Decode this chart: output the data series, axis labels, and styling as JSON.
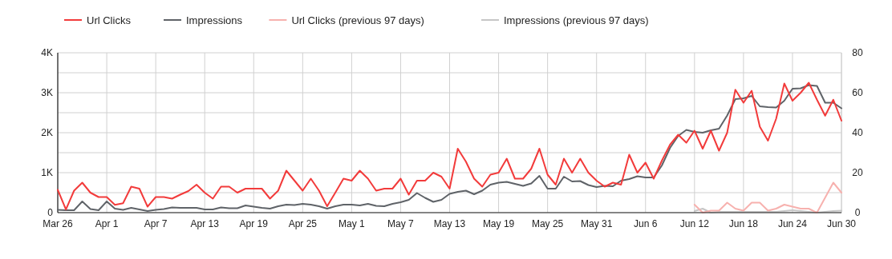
{
  "chart_data": {
    "type": "line",
    "legend": "top left",
    "grid": true,
    "line_style": "solid",
    "marker": "none",
    "x": [
      "--03-26",
      "--03-27",
      "--03-28",
      "--03-29",
      "--03-30",
      "--03-31",
      "--04-01",
      "--04-02",
      "--04-03",
      "--04-04",
      "--04-05",
      "--04-06",
      "--04-07",
      "--04-08",
      "--04-09",
      "--04-10",
      "--04-11",
      "--04-12",
      "--04-13",
      "--04-14",
      "--04-15",
      "--04-16",
      "--04-17",
      "--04-18",
      "--04-19",
      "--04-20",
      "--04-21",
      "--04-22",
      "--04-23",
      "--04-24",
      "--04-25",
      "--04-26",
      "--04-27",
      "--04-28",
      "--04-29",
      "--04-30",
      "--05-01",
      "--05-02",
      "--05-03",
      "--05-04",
      "--05-05",
      "--05-06",
      "--05-07",
      "--05-08",
      "--05-09",
      "--05-10",
      "--05-11",
      "--05-12",
      "--05-13",
      "--05-14",
      "--05-15",
      "--05-16",
      "--05-17",
      "--05-18",
      "--05-19",
      "--05-20",
      "--05-21",
      "--05-22",
      "--05-23",
      "--05-24",
      "--05-25",
      "--05-26",
      "--05-27",
      "--05-28",
      "--05-29",
      "--05-30",
      "--05-31",
      "--06-01",
      "--06-02",
      "--06-03",
      "--06-04",
      "--06-05",
      "--06-06",
      "--06-07",
      "--06-08",
      "--06-09",
      "--06-10",
      "--06-11",
      "--06-12",
      "--06-13",
      "--06-14",
      "--06-15",
      "--06-16",
      "--06-17",
      "--06-18",
      "--06-19",
      "--06-20",
      "--06-21",
      "--06-22",
      "--06-23",
      "--06-24",
      "--06-25",
      "--06-26",
      "--06-27",
      "--06-28",
      "--06-29",
      "--06-30"
    ],
    "xlim": [
      "--03-26",
      "--06-30"
    ],
    "xticks": [
      {
        "value": "--03-26",
        "label": "Mar 26"
      },
      {
        "value": "--04-01",
        "label": "Apr 1"
      },
      {
        "value": "--04-07",
        "label": "Apr 7"
      },
      {
        "value": "--04-13",
        "label": "Apr 13"
      },
      {
        "value": "--04-19",
        "label": "Apr 19"
      },
      {
        "value": "--04-25",
        "label": "Apr 25"
      },
      {
        "value": "--05-01",
        "label": "May 1"
      },
      {
        "value": "--05-07",
        "label": "May 7"
      },
      {
        "value": "--05-13",
        "label": "May 13"
      },
      {
        "value": "--05-19",
        "label": "May 19"
      },
      {
        "value": "--05-25",
        "label": "May 25"
      },
      {
        "value": "--05-31",
        "label": "May 31"
      },
      {
        "value": "--06-06",
        "label": "Jun 6"
      },
      {
        "value": "--06-12",
        "label": "Jun 12"
      },
      {
        "value": "--06-18",
        "label": "Jun 18"
      },
      {
        "value": "--06-24",
        "label": "Jun 24"
      },
      {
        "value": "--06-30",
        "label": "Jun 30"
      }
    ],
    "ylim": [
      0,
      4000
    ],
    "yticks": [
      0,
      {
        "value": 500,
        "label": null
      },
      {
        "value": 1000,
        "label": "1K"
      },
      {
        "value": 1500,
        "label": null
      },
      {
        "value": 2000,
        "label": "2K"
      },
      {
        "value": 2500,
        "label": null
      },
      {
        "value": 3000,
        "label": "3K"
      },
      {
        "value": 3500,
        "label": null
      },
      {
        "value": 4000,
        "label": "4K"
      }
    ],
    "y2lim": [
      0,
      80
    ],
    "y2ticks": [
      0,
      20,
      40,
      60,
      80
    ],
    "series": [
      {
        "name": "Url Clicks",
        "color": "#f23b3b",
        "axis": "y2",
        "values": [
          11.4,
          1.6,
          11,
          15,
          10,
          7.8,
          7.8,
          3.9,
          4.7,
          13,
          12,
          3,
          7.8,
          7.8,
          7,
          9,
          10.8,
          14,
          10,
          7,
          13,
          13,
          10,
          12,
          12,
          12,
          7,
          11,
          21,
          16,
          11,
          17,
          11,
          3.2,
          10,
          17,
          16,
          21,
          17,
          11,
          12,
          12,
          17,
          9,
          16,
          16,
          20,
          18,
          12,
          32,
          25.5,
          17,
          13,
          19,
          20,
          27,
          17,
          17,
          22,
          32,
          19,
          14,
          27,
          20,
          27,
          20,
          16,
          13,
          15,
          14,
          29,
          20,
          25,
          17,
          26,
          34,
          39,
          35,
          41,
          32,
          41,
          31,
          40,
          61.5,
          55,
          61,
          43,
          36,
          47,
          64.6,
          56,
          60,
          65,
          56.5,
          48.5,
          56.5,
          46
        ]
      },
      {
        "name": "Impressions",
        "color": "#5f6368",
        "axis": "y",
        "values": [
          70,
          60,
          60,
          280,
          90,
          60,
          280,
          100,
          70,
          120,
          80,
          40,
          70,
          90,
          130,
          120,
          120,
          120,
          80,
          80,
          130,
          110,
          110,
          180,
          150,
          120,
          100,
          160,
          200,
          190,
          220,
          200,
          160,
          100,
          160,
          200,
          200,
          180,
          220,
          170,
          160,
          220,
          260,
          320,
          490,
          370,
          270,
          320,
          470,
          520,
          550,
          460,
          550,
          700,
          750,
          770,
          720,
          670,
          730,
          920,
          600,
          600,
          900,
          780,
          790,
          690,
          640,
          670,
          660,
          800,
          840,
          910,
          880,
          880,
          1180,
          1620,
          1920,
          2070,
          2020,
          2000,
          2060,
          2100,
          2430,
          2840,
          2860,
          2920,
          2660,
          2640,
          2630,
          2800,
          3100,
          3110,
          3190,
          3170,
          2750,
          2750,
          2610
        ]
      },
      {
        "name": "Url Clicks (previous 97 days)",
        "color": "#f7b1ae",
        "axis": "y2",
        "x": [
          "--06-12",
          "--06-13",
          "--06-14",
          "--06-15",
          "--06-16",
          "--06-17",
          "--06-18",
          "--06-19",
          "--06-20",
          "--06-21",
          "--06-22",
          "--06-23",
          "--06-24",
          "--06-25",
          "--06-26",
          "--06-27",
          "--06-28",
          "--06-29",
          "--06-30"
        ],
        "values": [
          4,
          0,
          1,
          1,
          5,
          2,
          1,
          5,
          5,
          1,
          2,
          4,
          3,
          2,
          2,
          0,
          7.5,
          15,
          10
        ]
      },
      {
        "name": "Impressions (previous 97 days)",
        "color": "#c6c6c6",
        "axis": "y",
        "x": [
          "--06-12",
          "--06-13",
          "--06-14",
          "--06-15",
          "--06-16",
          "--06-17",
          "--06-18",
          "--06-19",
          "--06-20",
          "--06-21",
          "--06-22",
          "--06-23",
          "--06-24",
          "--06-25",
          "--06-26",
          "--06-27",
          "--06-28",
          "--06-29",
          "--06-30"
        ],
        "values": [
          40,
          100,
          0,
          20,
          20,
          20,
          20,
          20,
          20,
          20,
          20,
          40,
          60,
          40,
          20,
          0,
          20,
          40,
          50
        ]
      }
    ]
  }
}
